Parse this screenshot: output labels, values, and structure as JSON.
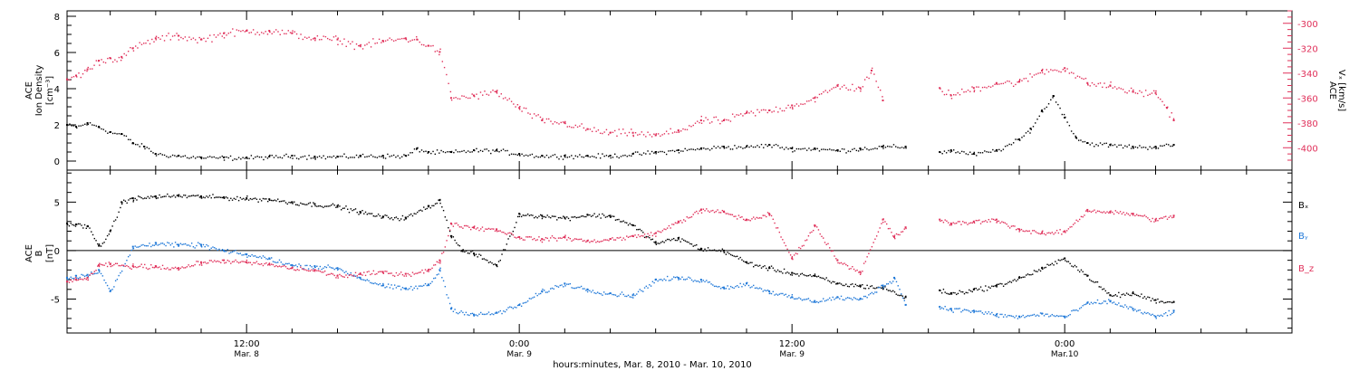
{
  "colors": {
    "black": "#000000",
    "pink": "#e0305a",
    "blue": "#1f78d8",
    "frame": "#000000"
  },
  "time_axis": {
    "title": "hours:minutes, Mar.  8, 2010 - Mar. 10, 2010",
    "ticks": [
      {
        "hours": 12,
        "line1": "12:00",
        "line2": "Mar. 8"
      },
      {
        "hours": 24,
        "line1": "0:00",
        "line2": "Mar. 9"
      },
      {
        "hours": 36,
        "line1": "12:00",
        "line2": "Mar. 9"
      },
      {
        "hours": 48,
        "line1": "0:00",
        "line2": "Mar.10"
      }
    ],
    "range_hours": [
      4.1,
      58.0
    ]
  },
  "chart_data": [
    {
      "type": "scatter",
      "panel": "top",
      "ylabel_left_lines": [
        "ACE",
        "Ion Density"
      ],
      "ylabel_left_unit": "[cm⁻³]",
      "ylabel_right_lines": [
        "ACE",
        "Vₓ [km/s]"
      ],
      "ylim_left": [
        -0.5,
        8.3
      ],
      "yticks_left": [
        "0",
        "2",
        "4",
        "6",
        "8"
      ],
      "ylim_right": [
        -418,
        -290
      ],
      "yticks_right": [
        "-300",
        "-320",
        "-340",
        "-360",
        "-380",
        "-400"
      ],
      "series": [
        {
          "key": "density",
          "color": "black",
          "axis": "left",
          "t": [
            4.1,
            4.5,
            5,
            5.5,
            6,
            6.5,
            7,
            7.5,
            8,
            9,
            10,
            11,
            12,
            13,
            14,
            15,
            16,
            17,
            18,
            19,
            19.5,
            20,
            21,
            22,
            23,
            24,
            25,
            26,
            27,
            28,
            29,
            30,
            31,
            32,
            33,
            34,
            35,
            36,
            37,
            38,
            39,
            40,
            41,
            41.5,
            42.5,
            43,
            44,
            45,
            46,
            46.5,
            47,
            47.5,
            48,
            48.5,
            49,
            50,
            51,
            52,
            52.8
          ],
          "values": [
            2.0,
            1.9,
            2.1,
            1.9,
            1.6,
            1.5,
            1.0,
            0.8,
            0.4,
            0.3,
            0.2,
            0.2,
            0.2,
            0.25,
            0.3,
            0.25,
            0.25,
            0.3,
            0.3,
            0.3,
            0.7,
            0.5,
            0.5,
            0.6,
            0.6,
            0.4,
            0.3,
            0.3,
            0.3,
            0.3,
            0.4,
            0.5,
            0.6,
            0.7,
            0.8,
            0.8,
            0.9,
            0.7,
            0.7,
            0.6,
            0.7,
            0.8,
            0.8,
            null,
            0.5,
            0.6,
            0.4,
            0.6,
            1.2,
            1.8,
            2.8,
            3.6,
            2.4,
            1.3,
            1.0,
            0.9,
            0.8,
            0.8,
            0.9
          ]
        },
        {
          "key": "vx",
          "color": "pink",
          "axis": "right",
          "t": [
            4.1,
            4.5,
            5,
            5.5,
            6,
            6.5,
            7,
            8,
            9,
            10,
            11,
            12,
            13,
            14,
            15,
            16,
            17,
            18,
            19,
            19.5,
            20,
            20.5,
            21,
            22,
            23,
            24,
            25,
            26,
            27,
            28,
            29,
            30,
            31,
            32,
            33,
            34,
            35,
            36,
            37,
            38,
            39,
            39.5,
            40,
            41,
            41.5,
            42.5,
            43,
            44,
            45,
            46,
            47,
            48,
            49,
            50,
            51,
            52,
            52.5,
            52.8
          ],
          "values": [
            -345,
            -342,
            -337,
            -330,
            -328,
            -327,
            -320,
            -312,
            -310,
            -313,
            -308,
            -306,
            -306,
            -308,
            -312,
            -313,
            -318,
            -314,
            -312,
            -313,
            -318,
            -323,
            -360,
            -358,
            -355,
            -368,
            -378,
            -380,
            -385,
            -388,
            -388,
            -390,
            -386,
            -378,
            -378,
            -372,
            -370,
            -366,
            -360,
            -350,
            -352,
            -338,
            -362,
            null,
            null,
            -352,
            -358,
            -352,
            -348,
            -347,
            -338,
            -336,
            -348,
            -350,
            -355,
            -356,
            -368,
            -378
          ]
        }
      ]
    },
    {
      "type": "scatter",
      "panel": "bottom",
      "ylabel_left_lines": [
        "ACE",
        "B"
      ],
      "ylabel_left_unit": "[nT]",
      "ylim": [
        -8.5,
        8.3
      ],
      "yticks": [
        "5",
        "0",
        "-5"
      ],
      "zero_line": true,
      "legend": [
        {
          "text": "Bₓ",
          "color": "black"
        },
        {
          "text": "Bᵧ",
          "color": "blue"
        },
        {
          "text": "B_z",
          "color": "pink"
        }
      ],
      "series": [
        {
          "key": "Bx",
          "color": "black",
          "t": [
            4.1,
            4.5,
            5,
            5.5,
            6,
            6.5,
            7,
            8,
            9,
            10,
            11,
            12,
            13,
            14,
            15,
            16,
            17,
            18,
            19,
            20,
            20.5,
            21,
            21.5,
            22,
            23,
            24,
            25,
            26,
            27,
            28,
            29,
            30,
            31,
            32,
            33,
            34,
            35,
            36,
            37,
            38,
            39,
            40,
            41,
            41.5,
            42.5,
            43,
            44,
            45,
            46,
            47,
            48,
            49,
            50,
            51,
            52,
            52.8
          ],
          "values": [
            2.8,
            2.7,
            2.5,
            0.5,
            2.0,
            5.0,
            5.4,
            5.6,
            5.7,
            5.6,
            5.5,
            5.4,
            5.3,
            5.0,
            4.8,
            4.6,
            4.0,
            3.5,
            3.4,
            4.6,
            5.2,
            1.5,
            0.0,
            -0.3,
            -1.5,
            3.8,
            3.6,
            3.4,
            3.7,
            3.6,
            2.6,
            0.8,
            1.3,
            0.2,
            0.0,
            -1.2,
            -1.8,
            -2.3,
            -2.6,
            -3.4,
            -3.6,
            -3.8,
            -4.8,
            null,
            -4.1,
            -4.4,
            -4.0,
            -3.6,
            -2.8,
            -1.8,
            -0.8,
            -2.6,
            -4.6,
            -4.4,
            -5.1,
            -5.3
          ]
        },
        {
          "key": "By",
          "color": "blue",
          "t": [
            4.1,
            4.5,
            5,
            5.5,
            6,
            7,
            8,
            9,
            10,
            11,
            12,
            13,
            14,
            15,
            16,
            17,
            18,
            19,
            20,
            20.5,
            21,
            22,
            23,
            24,
            25,
            26,
            27,
            28,
            29,
            30,
            31,
            32,
            33,
            34,
            35,
            36,
            37,
            38,
            39,
            40,
            40.5,
            41,
            41.5,
            42.5,
            43,
            44,
            45,
            46,
            47,
            48,
            49,
            50,
            51,
            52,
            52.8
          ],
          "values": [
            -2.8,
            -2.6,
            -2.5,
            -2.0,
            -4.2,
            0.4,
            0.8,
            0.6,
            0.6,
            0.0,
            -0.4,
            -0.8,
            -1.5,
            -1.6,
            -1.8,
            -2.8,
            -3.6,
            -3.9,
            -3.5,
            -2.0,
            -6.0,
            -6.6,
            -6.4,
            -5.6,
            -4.2,
            -3.4,
            -4.0,
            -4.4,
            -4.6,
            -3.0,
            -2.8,
            -3.0,
            -3.8,
            -3.4,
            -4.2,
            -4.8,
            -5.2,
            -4.8,
            -5.0,
            -3.6,
            -2.8,
            -5.6,
            null,
            -5.8,
            -6.0,
            -6.2,
            -6.6,
            -6.8,
            -6.5,
            -6.8,
            -5.4,
            -5.2,
            -6.0,
            -6.8,
            -6.2
          ]
        },
        {
          "key": "Bz",
          "color": "pink",
          "t": [
            4.1,
            4.5,
            5,
            5.5,
            6,
            7,
            8,
            9,
            10,
            11,
            12,
            13,
            14,
            15,
            16,
            17,
            18,
            19,
            20,
            20.5,
            21,
            22,
            23,
            24,
            25,
            26,
            27,
            28,
            29,
            30,
            31,
            32,
            33,
            34,
            35,
            36,
            37,
            38,
            39,
            40,
            40.5,
            41,
            41.5,
            42.5,
            43,
            44,
            45,
            46,
            47,
            48,
            49,
            50,
            51,
            52,
            52.8
          ],
          "values": [
            -3.2,
            -3.0,
            -2.8,
            -1.5,
            -1.4,
            -1.6,
            -1.6,
            -1.8,
            -1.2,
            -1.0,
            -1.2,
            -1.4,
            -1.8,
            -2.0,
            -2.6,
            -2.4,
            -2.2,
            -2.4,
            -2.0,
            -1.0,
            2.8,
            2.4,
            2.2,
            1.4,
            1.2,
            1.4,
            1.0,
            1.2,
            1.5,
            1.8,
            3.0,
            4.2,
            4.0,
            3.2,
            3.8,
            -0.8,
            2.6,
            -1.0,
            -2.2,
            3.2,
            1.4,
            2.4,
            null,
            3.2,
            2.8,
            3.0,
            3.2,
            2.2,
            1.8,
            2.0,
            4.2,
            4.0,
            3.8,
            3.2,
            3.6
          ]
        }
      ]
    }
  ]
}
